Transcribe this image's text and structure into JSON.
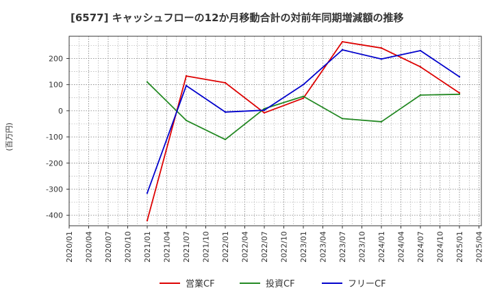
{
  "chart_data": {
    "type": "line",
    "title": "[6577]  キャッシュフローの12か月移動合計の対前年同期増減額の推移",
    "ylabel": "(百万円)",
    "xlabel": "",
    "ylim": [
      -440,
      285
    ],
    "yticks": [
      -400,
      -300,
      -200,
      -100,
      0,
      100,
      200
    ],
    "grid": true,
    "x_ticks": [
      "2020/01",
      "2020/04",
      "2020/07",
      "2020/10",
      "2021/01",
      "2021/04",
      "2021/07",
      "2021/10",
      "2022/01",
      "2022/04",
      "2022/07",
      "2022/10",
      "2023/01",
      "2023/04",
      "2023/07",
      "2023/10",
      "2024/01",
      "2024/04",
      "2024/07",
      "2024/10",
      "2025/01",
      "2025/04"
    ],
    "legend_position": "bottom",
    "series": [
      {
        "name": "営業CF",
        "color": "#dd0000",
        "points": [
          [
            "2021/01",
            -420
          ],
          [
            "2021/07",
            133
          ],
          [
            "2022/01",
            107
          ],
          [
            "2022/07",
            -8
          ],
          [
            "2023/01",
            48
          ],
          [
            "2023/07",
            264
          ],
          [
            "2024/01",
            240
          ],
          [
            "2024/07",
            168
          ],
          [
            "2025/01",
            68
          ]
        ]
      },
      {
        "name": "投資CF",
        "color": "#228822",
        "points": [
          [
            "2021/01",
            110
          ],
          [
            "2021/07",
            -37
          ],
          [
            "2022/01",
            -110
          ],
          [
            "2022/07",
            8
          ],
          [
            "2023/01",
            55
          ],
          [
            "2023/07",
            -30
          ],
          [
            "2024/01",
            -42
          ],
          [
            "2024/07",
            60
          ],
          [
            "2025/01",
            63
          ]
        ]
      },
      {
        "name": "フリーCF",
        "color": "#0000cc",
        "points": [
          [
            "2021/01",
            -315
          ],
          [
            "2021/07",
            96
          ],
          [
            "2022/01",
            -5
          ],
          [
            "2022/07",
            2
          ],
          [
            "2023/01",
            100
          ],
          [
            "2023/07",
            233
          ],
          [
            "2024/01",
            198
          ],
          [
            "2024/07",
            230
          ],
          [
            "2025/01",
            130
          ]
        ]
      }
    ]
  }
}
